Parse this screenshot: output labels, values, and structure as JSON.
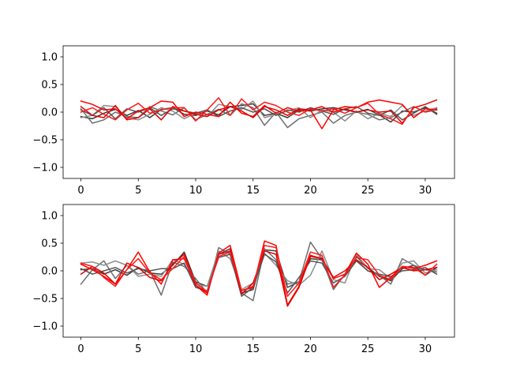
{
  "chart_data": [
    {
      "type": "line",
      "grid": false,
      "xlim": [
        -1.55,
        32.55
      ],
      "ylim": [
        -1.2,
        1.2
      ],
      "xticks": [
        0,
        5,
        10,
        15,
        20,
        25,
        30
      ],
      "yticks": [
        -1.0,
        -0.5,
        0.0,
        0.5,
        1.0
      ],
      "x_tick_labels": [
        "0",
        "5",
        "10",
        "15",
        "20",
        "25",
        "30"
      ],
      "y_tick_labels": [
        "−1.0",
        "−0.5",
        "0.0",
        "0.5",
        "1.0"
      ],
      "series": [
        {
          "color": "#3a3a3a",
          "values": [
            -0.08,
            -0.12,
            -0.02,
            0.05,
            -0.06,
            0.03,
            -0.1,
            0.05,
            0.08,
            -0.04,
            -0.06,
            0.02,
            -0.05,
            0.1,
            0.12,
            0.15,
            -0.06,
            -0.02,
            -0.1,
            0.04,
            0.02,
            0.06,
            0.08,
            0.04,
            0.0,
            0.05,
            -0.05,
            -0.18,
            0.02,
            0.0,
            0.08,
            -0.02
          ]
        },
        {
          "color": "#6e6e6e",
          "values": [
            0.06,
            -0.2,
            -0.14,
            0.0,
            -0.08,
            -0.1,
            0.1,
            0.02,
            -0.05,
            0.08,
            -0.14,
            -0.04,
            0.05,
            -0.06,
            0.15,
            0.08,
            -0.24,
            0.0,
            -0.28,
            -0.12,
            -0.06,
            0.0,
            -0.2,
            -0.06,
            0.0,
            -0.04,
            -0.14,
            -0.1,
            0.0,
            0.1,
            0.0,
            0.04
          ]
        },
        {
          "color": "#8c8c8c",
          "values": [
            -0.1,
            -0.06,
            0.12,
            0.1,
            -0.1,
            -0.14,
            -0.04,
            0.08,
            0.02,
            -0.12,
            -0.02,
            -0.08,
            0.14,
            0.1,
            0.05,
            0.2,
            -0.1,
            -0.04,
            0.02,
            0.08,
            -0.1,
            0.04,
            0.0,
            -0.16,
            0.02,
            -0.12,
            -0.02,
            -0.08,
            0.12,
            -0.06,
            0.02,
            0.08
          ]
        },
        {
          "color": "#555555",
          "values": [
            0.04,
            -0.06,
            0.08,
            -0.12,
            0.06,
            0.0,
            0.08,
            -0.06,
            0.06,
            0.02,
            -0.02,
            0.04,
            -0.08,
            0.02,
            0.08,
            0.0,
            0.06,
            -0.06,
            0.04,
            0.0,
            0.08,
            0.02,
            -0.04,
            0.06,
            0.1,
            -0.02,
            -0.06,
            0.04,
            -0.14,
            -0.02,
            0.1,
            -0.04
          ]
        },
        {
          "color": "#ff0000",
          "values": [
            0.2,
            0.14,
            0.04,
            0.06,
            -0.12,
            0.02,
            0.08,
            0.2,
            0.18,
            -0.08,
            0.0,
            -0.04,
            -0.08,
            0.18,
            -0.02,
            -0.08,
            0.12,
            -0.02,
            0.08,
            0.02,
            0.04,
            -0.3,
            0.04,
            0.1,
            0.08,
            0.18,
            0.22,
            0.18,
            0.14,
            -0.1,
            0.06,
            0.04
          ]
        },
        {
          "color": "#e00000",
          "values": [
            0.1,
            -0.06,
            -0.1,
            0.12,
            -0.14,
            -0.1,
            0.06,
            -0.14,
            0.1,
            0.02,
            -0.04,
            -0.08,
            0.04,
            0.1,
            0.02,
            -0.1,
            0.1,
            0.04,
            -0.06,
            0.06,
            0.04,
            0.1,
            0.0,
            0.06,
            0.0,
            0.04,
            0.0,
            0.02,
            -0.2,
            0.08,
            0.14,
            0.22
          ]
        },
        {
          "color": "#ff1a1a",
          "values": [
            0.0,
            0.08,
            -0.04,
            -0.14,
            0.04,
            0.16,
            -0.02,
            0.04,
            0.08,
            0.08,
            -0.16,
            0.04,
            0.26,
            -0.06,
            0.24,
            0.04,
            0.18,
            0.12,
            0.0,
            -0.06,
            0.06,
            0.02,
            0.06,
            -0.02,
            0.08,
            0.16,
            -0.04,
            -0.12,
            -0.22,
            0.1,
            0.0,
            0.06
          ]
        }
      ]
    },
    {
      "type": "line",
      "grid": false,
      "xlim": [
        -1.55,
        32.55
      ],
      "ylim": [
        -1.2,
        1.2
      ],
      "xticks": [
        0,
        5,
        10,
        15,
        20,
        25,
        30
      ],
      "yticks": [
        -1.0,
        -0.5,
        0.0,
        0.5,
        1.0
      ],
      "x_tick_labels": [
        "0",
        "5",
        "10",
        "15",
        "20",
        "25",
        "30"
      ],
      "y_tick_labels": [
        "−1.0",
        "−0.5",
        "0.0",
        "0.5",
        "1.0"
      ],
      "series": [
        {
          "color": "#3a3a3a",
          "values": [
            0.02,
            0.04,
            -0.06,
            0.02,
            -0.08,
            0.06,
            -0.04,
            -0.06,
            0.1,
            0.34,
            -0.2,
            -0.28,
            0.3,
            0.4,
            -0.4,
            -0.34,
            0.38,
            0.36,
            -0.3,
            -0.2,
            0.22,
            0.2,
            -0.3,
            -0.08,
            0.26,
            0.06,
            -0.1,
            -0.18,
            0.04,
            0.1,
            -0.08,
            0.06
          ]
        },
        {
          "color": "#6e6e6e",
          "values": [
            -0.24,
            0.02,
            0.18,
            -0.14,
            0.1,
            -0.06,
            0.0,
            -0.44,
            0.16,
            0.08,
            -0.14,
            -0.4,
            0.42,
            0.3,
            -0.4,
            -0.54,
            0.4,
            0.2,
            -0.24,
            -0.2,
            0.52,
            0.22,
            -0.34,
            -0.06,
            0.2,
            0.0,
            -0.08,
            -0.24,
            0.22,
            0.1,
            0.02,
            -0.02
          ]
        },
        {
          "color": "#8c8c8c",
          "values": [
            0.14,
            0.16,
            0.1,
            0.18,
            0.1,
            -0.1,
            -0.06,
            -0.1,
            0.2,
            0.12,
            -0.24,
            -0.28,
            0.36,
            0.22,
            -0.34,
            -0.22,
            0.32,
            0.1,
            -0.18,
            -0.26,
            -0.08,
            0.36,
            -0.16,
            -0.22,
            0.3,
            0.04,
            0.02,
            -0.14,
            0.14,
            0.18,
            -0.04,
            0.02
          ]
        },
        {
          "color": "#555555",
          "values": [
            0.04,
            -0.06,
            0.0,
            0.06,
            -0.04,
            0.04,
            0.0,
            0.04,
            0.04,
            0.14,
            -0.3,
            -0.36,
            0.24,
            0.3,
            -0.46,
            -0.3,
            0.3,
            0.16,
            -0.4,
            -0.12,
            0.18,
            0.14,
            -0.22,
            -0.1,
            0.18,
            0.0,
            -0.06,
            -0.1,
            0.0,
            0.02,
            0.06,
            -0.06
          ]
        },
        {
          "color": "#ff0000",
          "values": [
            0.12,
            0.02,
            -0.1,
            -0.24,
            0.02,
            0.34,
            -0.02,
            -0.24,
            0.2,
            0.22,
            -0.26,
            -0.44,
            0.32,
            0.46,
            -0.36,
            -0.3,
            0.54,
            0.46,
            -0.62,
            -0.28,
            0.28,
            0.22,
            -0.14,
            -0.06,
            0.32,
            0.12,
            -0.3,
            -0.12,
            0.08,
            0.04,
            0.1,
            0.18
          ]
        },
        {
          "color": "#e00000",
          "values": [
            -0.06,
            0.08,
            -0.04,
            -0.24,
            0.14,
            0.06,
            -0.12,
            -0.18,
            0.12,
            0.3,
            -0.26,
            -0.4,
            0.3,
            0.36,
            -0.42,
            -0.22,
            0.36,
            0.3,
            -0.64,
            -0.3,
            0.26,
            0.22,
            -0.12,
            0.0,
            0.2,
            0.06,
            -0.16,
            -0.06,
            0.06,
            0.0,
            0.02,
            0.06
          ]
        },
        {
          "color": "#ff1a1a",
          "values": [
            0.14,
            0.08,
            -0.12,
            -0.28,
            0.02,
            0.22,
            -0.04,
            -0.16,
            0.04,
            0.26,
            -0.22,
            -0.38,
            0.26,
            0.34,
            -0.36,
            -0.28,
            0.46,
            0.42,
            -0.46,
            -0.22,
            0.34,
            0.28,
            -0.3,
            -0.08,
            0.24,
            0.2,
            -0.08,
            -0.16,
            0.08,
            0.06,
            -0.08,
            0.12
          ]
        }
      ]
    }
  ]
}
